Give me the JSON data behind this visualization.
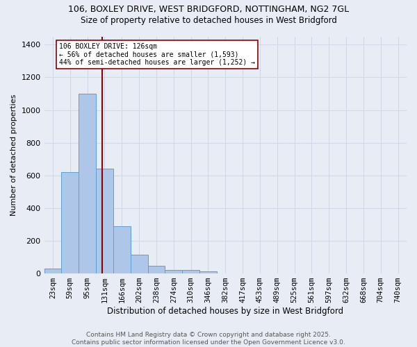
{
  "title_line1": "106, BOXLEY DRIVE, WEST BRIDGFORD, NOTTINGHAM, NG2 7GL",
  "title_line2": "Size of property relative to detached houses in West Bridgford",
  "xlabel": "Distribution of detached houses by size in West Bridgford",
  "ylabel": "Number of detached properties",
  "bin_labels": [
    "23sqm",
    "59sqm",
    "95sqm",
    "131sqm",
    "166sqm",
    "202sqm",
    "238sqm",
    "274sqm",
    "310sqm",
    "346sqm",
    "382sqm",
    "417sqm",
    "453sqm",
    "489sqm",
    "525sqm",
    "561sqm",
    "597sqm",
    "632sqm",
    "668sqm",
    "704sqm",
    "740sqm"
  ],
  "bar_values": [
    30,
    620,
    1100,
    640,
    290,
    115,
    48,
    22,
    20,
    13,
    0,
    0,
    0,
    0,
    0,
    0,
    0,
    0,
    0,
    0,
    0
  ],
  "bar_color": "#aec6e8",
  "bar_edge_color": "#5a9fd4",
  "annotation_text": "106 BOXLEY DRIVE: 126sqm\n← 56% of detached houses are smaller (1,593)\n44% of semi-detached houses are larger (1,252) →",
  "vline_pos": 2.86,
  "vline_color": "#8b0000",
  "annotation_box_color": "#ffffff",
  "annotation_box_edge": "#8b0000",
  "grid_color": "#d0d8e8",
  "background_color": "#e8edf5",
  "footer_text": "Contains HM Land Registry data © Crown copyright and database right 2025.\nContains public sector information licensed under the Open Government Licence v3.0.",
  "ylim": [
    0,
    1450
  ],
  "yticks": [
    0,
    200,
    400,
    600,
    800,
    1000,
    1200,
    1400
  ]
}
